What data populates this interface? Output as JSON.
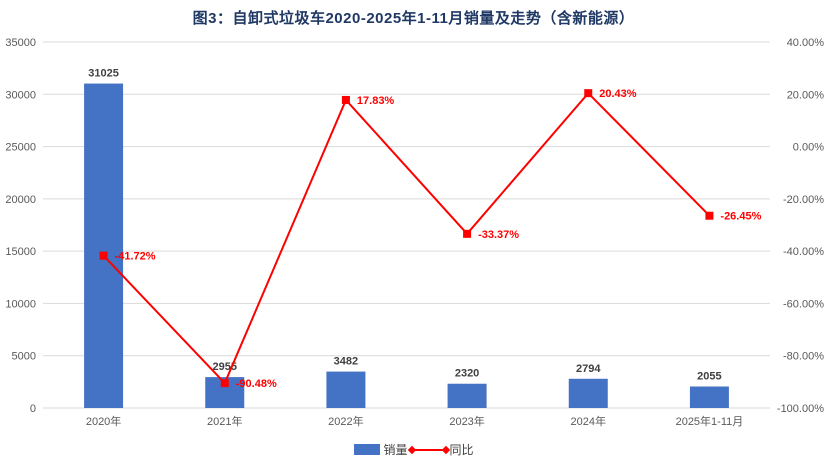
{
  "title": "图3：自卸式垃圾车2020-2025年1-11月销量及走势（含新能源）",
  "legend": {
    "sales_label": "销量",
    "yoy_label": "同比"
  },
  "colors": {
    "bar": "#4472C4",
    "line": "#FF0000",
    "title": "#1F3864",
    "value_label": "#404040",
    "axis_label": "#595959",
    "gridline": "#D9D9D9"
  },
  "chart_data": {
    "type": "bar+line combo",
    "title": "图3：自卸式垃圾车2020-2025年1-11月销量及走势（含新能源）",
    "categories": [
      "2020年",
      "2021年",
      "2022年",
      "2023年",
      "2024年",
      "2025年1-11月"
    ],
    "series": [
      {
        "name": "销量",
        "type": "bar",
        "axis": "left",
        "values": [
          31025,
          2955,
          3482,
          2320,
          2794,
          2055
        ],
        "labels": [
          "31025",
          "2955",
          "3482",
          "2320",
          "2794",
          "2055"
        ]
      },
      {
        "name": "同比",
        "type": "line",
        "axis": "right",
        "values": [
          -41.72,
          -90.48,
          17.83,
          -33.37,
          20.43,
          -26.45
        ],
        "labels": [
          "-41.72%",
          "-90.48%",
          "17.83%",
          "-33.37%",
          "20.43%",
          "-26.45%"
        ]
      }
    ],
    "left_axis": {
      "min": 0,
      "max": 35000,
      "step": 5000,
      "ticks": [
        "0",
        "5000",
        "10000",
        "15000",
        "20000",
        "25000",
        "30000",
        "35000"
      ]
    },
    "right_axis": {
      "min": -100,
      "max": 40,
      "step": 20,
      "ticks": [
        "40.00%",
        "20.00%",
        "0.00%",
        "-20.00%",
        "-40.00%",
        "-60.00%",
        "-80.00%",
        "-100.00%"
      ]
    },
    "grid": true,
    "legend_position": "bottom"
  }
}
